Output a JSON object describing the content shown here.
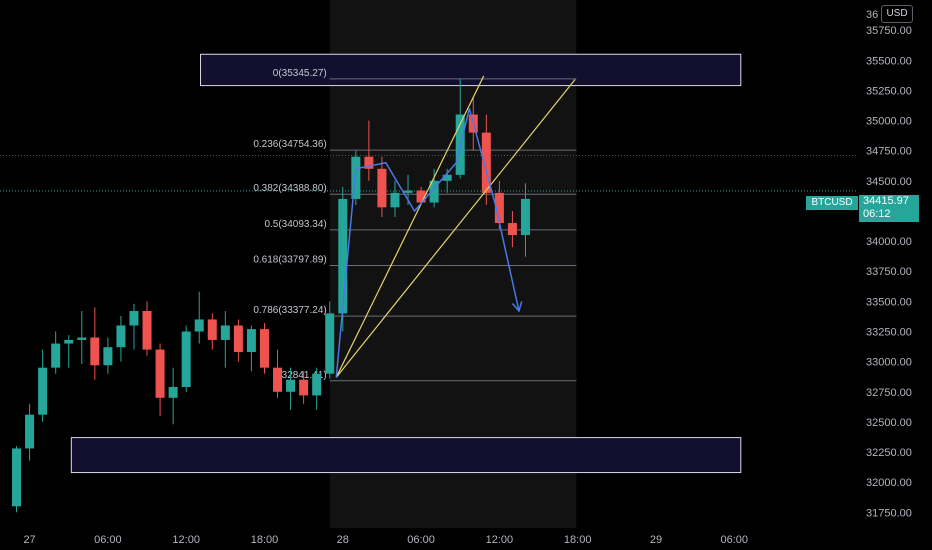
{
  "header": {
    "currency_badge": "USD"
  },
  "price_tag": {
    "symbol": "BTCUSD",
    "price": "34415.97",
    "countdown": "06:12"
  },
  "colors": {
    "background": "#000000",
    "up": "#26a69a",
    "down": "#ef5350",
    "zone_border": "#d9d9e6",
    "zone_fill": "#12102e",
    "fib_line": "#6a6d78",
    "trend_line": "#e5d36a",
    "projection": "#4a78e8"
  },
  "chart_data": {
    "type": "candlestick",
    "y_axis": {
      "range": [
        31620,
        36000
      ],
      "tick_values": [
        31750,
        32000,
        32250,
        32500,
        32750,
        33000,
        33250,
        33500,
        33750,
        34000,
        34250,
        34500,
        34750,
        35000,
        35250,
        35500,
        35750
      ],
      "tick_labels": [
        "31750.00",
        "32000.00",
        "32250.00",
        "32500.00",
        "32750.00",
        "33000.00",
        "33250.00",
        "33500.00",
        "33750.00",
        "34000.00",
        "34250.00",
        "34500.00",
        "34750.00",
        "35000.00",
        "35250.00",
        "35500.00",
        "35750.00"
      ],
      "top_partial_label": "36"
    },
    "x_axis": {
      "candle_interval_hours": 1,
      "tick_labels": [
        {
          "label": "27",
          "bar": 1.5
        },
        {
          "label": "06:00",
          "bar": 7.5
        },
        {
          "label": "12:00",
          "bar": 13.5
        },
        {
          "label": "18:00",
          "bar": 19.5
        },
        {
          "label": "28",
          "bar": 25.5
        },
        {
          "label": "06:00",
          "bar": 31.5
        },
        {
          "label": "12:00",
          "bar": 37.5
        },
        {
          "label": "18:00",
          "bar": 43.5
        },
        {
          "label": "29",
          "bar": 49.5
        },
        {
          "label": "06:00",
          "bar": 55.5
        }
      ]
    },
    "candles": [
      {
        "o": 31800,
        "h": 32300,
        "l": 31750,
        "c": 32280
      },
      {
        "o": 32280,
        "h": 32650,
        "l": 32180,
        "c": 32560
      },
      {
        "o": 32560,
        "h": 33100,
        "l": 32500,
        "c": 32950
      },
      {
        "o": 32950,
        "h": 33250,
        "l": 32900,
        "c": 33150
      },
      {
        "o": 33150,
        "h": 33220,
        "l": 32950,
        "c": 33180
      },
      {
        "o": 33180,
        "h": 33420,
        "l": 32980,
        "c": 33200
      },
      {
        "o": 33200,
        "h": 33450,
        "l": 32850,
        "c": 32970
      },
      {
        "o": 32970,
        "h": 33200,
        "l": 32900,
        "c": 33120
      },
      {
        "o": 33120,
        "h": 33380,
        "l": 33000,
        "c": 33300
      },
      {
        "o": 33300,
        "h": 33480,
        "l": 33100,
        "c": 33420
      },
      {
        "o": 33420,
        "h": 33500,
        "l": 33050,
        "c": 33100
      },
      {
        "o": 33100,
        "h": 33150,
        "l": 32550,
        "c": 32700
      },
      {
        "o": 32700,
        "h": 32950,
        "l": 32480,
        "c": 32790
      },
      {
        "o": 32790,
        "h": 33300,
        "l": 32750,
        "c": 33250
      },
      {
        "o": 33250,
        "h": 33580,
        "l": 33150,
        "c": 33350
      },
      {
        "o": 33350,
        "h": 33400,
        "l": 33100,
        "c": 33180
      },
      {
        "o": 33180,
        "h": 33420,
        "l": 32950,
        "c": 33300
      },
      {
        "o": 33300,
        "h": 33350,
        "l": 33000,
        "c": 33080
      },
      {
        "o": 33080,
        "h": 33300,
        "l": 32920,
        "c": 33270
      },
      {
        "o": 33270,
        "h": 33320,
        "l": 32900,
        "c": 32950
      },
      {
        "o": 32950,
        "h": 33100,
        "l": 32700,
        "c": 32750
      },
      {
        "o": 32750,
        "h": 32950,
        "l": 32600,
        "c": 32850
      },
      {
        "o": 32850,
        "h": 32920,
        "l": 32650,
        "c": 32720
      },
      {
        "o": 32720,
        "h": 32950,
        "l": 32600,
        "c": 32900
      },
      {
        "o": 32900,
        "h": 33500,
        "l": 32860,
        "c": 33400
      },
      {
        "o": 33400,
        "h": 34450,
        "l": 33250,
        "c": 34350
      },
      {
        "o": 34350,
        "h": 34750,
        "l": 34300,
        "c": 34700
      },
      {
        "o": 34700,
        "h": 35000,
        "l": 34500,
        "c": 34600
      },
      {
        "o": 34600,
        "h": 34700,
        "l": 34200,
        "c": 34280
      },
      {
        "o": 34280,
        "h": 34500,
        "l": 34200,
        "c": 34400
      },
      {
        "o": 34400,
        "h": 34550,
        "l": 34300,
        "c": 34420
      },
      {
        "o": 34420,
        "h": 34450,
        "l": 34300,
        "c": 34320
      },
      {
        "o": 34320,
        "h": 34600,
        "l": 34280,
        "c": 34500
      },
      {
        "o": 34500,
        "h": 34600,
        "l": 34400,
        "c": 34550
      },
      {
        "o": 34550,
        "h": 35350,
        "l": 34520,
        "c": 35050
      },
      {
        "o": 35050,
        "h": 35200,
        "l": 34750,
        "c": 34900
      },
      {
        "o": 34900,
        "h": 35050,
        "l": 34300,
        "c": 34400
      },
      {
        "o": 34400,
        "h": 34500,
        "l": 34100,
        "c": 34150
      },
      {
        "o": 34150,
        "h": 34250,
        "l": 33950,
        "c": 34050
      },
      {
        "o": 34050,
        "h": 34480,
        "l": 33870,
        "c": 34350
      }
    ],
    "fib_retracement": {
      "levels": [
        {
          "ratio": "0",
          "price": 35345.27,
          "label": "0(35345.27)"
        },
        {
          "ratio": "0.236",
          "price": 34754.36,
          "label": "0.236(34754.36)"
        },
        {
          "ratio": "0.382",
          "price": 34388.8,
          "label": "0.382(34388.80)"
        },
        {
          "ratio": "0.5",
          "price": 34093.34,
          "label": "0.5(34093.34)"
        },
        {
          "ratio": "0.618",
          "price": 33797.89,
          "label": "0.618(33797.89)"
        },
        {
          "ratio": "0.786",
          "price": 33377.24,
          "label": "0.786(33377.24)"
        },
        {
          "ratio": "1",
          "price": 32841.41,
          "label": "1(32841.41)"
        }
      ],
      "start_bar": 24.5,
      "end_bar": 43.4
    },
    "zones": [
      {
        "top": 35550,
        "bottom": 35290,
        "start_bar": 14.6,
        "end_bar": 56.0
      },
      {
        "top": 32370,
        "bottom": 32080,
        "start_bar": 4.7,
        "end_bar": 56.0
      }
    ],
    "trend_lines": [
      {
        "from": {
          "bar": 25.0,
          "price": 32870
        },
        "to": {
          "bar": 36.3,
          "price": 35370
        }
      },
      {
        "from": {
          "bar": 25.0,
          "price": 32870
        },
        "to": {
          "bar": 43.3,
          "price": 35340
        }
      }
    ],
    "projection_path": [
      {
        "bar": 25.0,
        "price": 32870
      },
      {
        "bar": 26.5,
        "price": 34600
      },
      {
        "bar": 28.8,
        "price": 34650
      },
      {
        "bar": 31.0,
        "price": 34250
      },
      {
        "bar": 34.2,
        "price": 34650
      },
      {
        "bar": 35.2,
        "price": 35100
      },
      {
        "bar": 37.2,
        "price": 34300
      },
      {
        "bar": 39.0,
        "price": 33420
      }
    ],
    "reference_lines": [
      {
        "price": 34710,
        "style": "dotted"
      },
      {
        "price": 34415.97,
        "style": "dotted"
      }
    ],
    "current_price": 34415.97
  }
}
